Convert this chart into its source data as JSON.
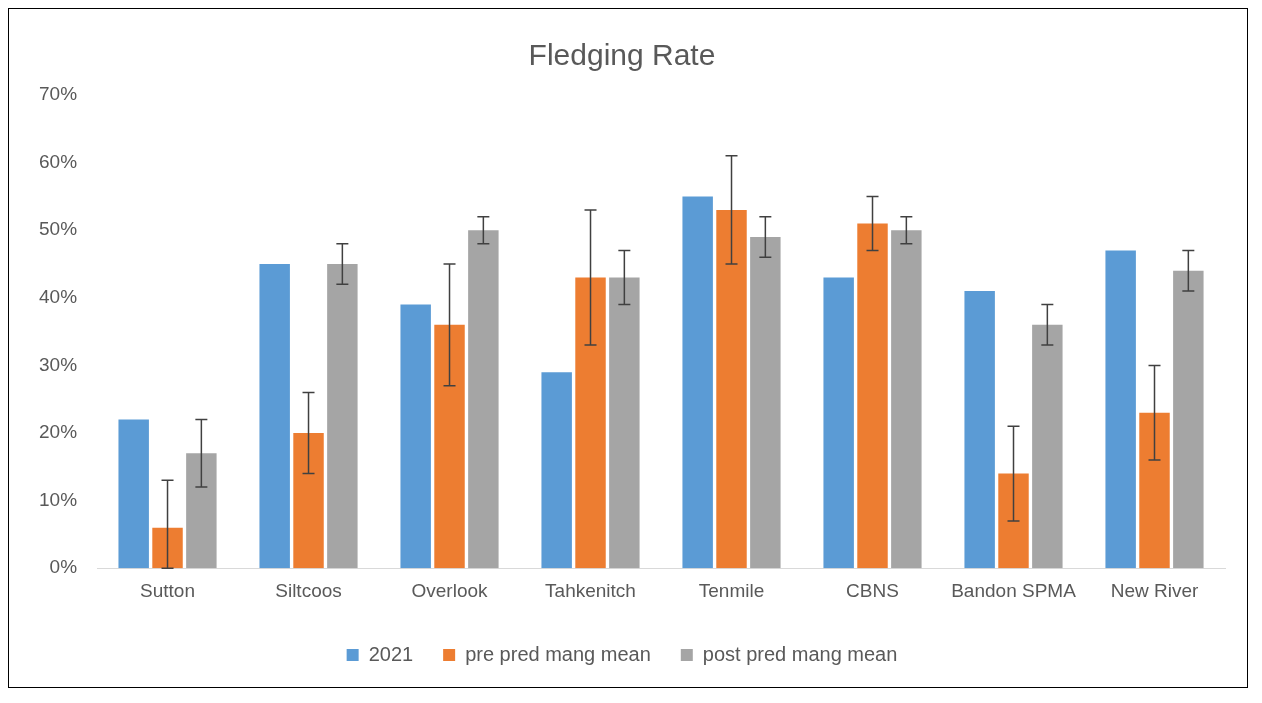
{
  "chart_data": {
    "type": "bar",
    "title": "Fledging Rate",
    "categories": [
      "Sutton",
      "Siltcoos",
      "Overlook",
      "Tahkenitch",
      "Tenmile",
      "CBNS",
      "Bandon SPMA",
      "New River"
    ],
    "series": [
      {
        "name": "2021",
        "color": "#5b9bd5",
        "values": [
          22,
          45,
          39,
          29,
          55,
          43,
          41,
          47
        ]
      },
      {
        "name": "pre pred mang mean",
        "color": "#ed7d31",
        "values": [
          6,
          20,
          36,
          43,
          53,
          51,
          14,
          23
        ],
        "errors": [
          [
            0,
            13
          ],
          [
            14,
            26
          ],
          [
            27,
            45
          ],
          [
            33,
            53
          ],
          [
            45,
            61
          ],
          [
            47,
            55
          ],
          [
            7,
            21
          ],
          [
            16,
            30
          ]
        ]
      },
      {
        "name": "post pred mang mean",
        "color": "#a5a5a5",
        "values": [
          17,
          45,
          50,
          43,
          49,
          50,
          36,
          44
        ],
        "errors": [
          [
            12,
            22
          ],
          [
            42,
            48
          ],
          [
            48,
            52
          ],
          [
            39,
            47
          ],
          [
            46,
            52
          ],
          [
            48,
            52
          ],
          [
            33,
            39
          ],
          [
            41,
            47
          ]
        ]
      }
    ],
    "ylim": [
      0,
      70
    ],
    "yticks": [
      {
        "value": 0,
        "label": "0%"
      },
      {
        "value": 10,
        "label": "10%"
      },
      {
        "value": 20,
        "label": "20%"
      },
      {
        "value": 30,
        "label": "30%"
      },
      {
        "value": 40,
        "label": "40%"
      },
      {
        "value": 50,
        "label": "50%"
      },
      {
        "value": 60,
        "label": "60%"
      },
      {
        "value": 70,
        "label": "70%"
      }
    ],
    "grid": false,
    "legend": "bottom"
  }
}
